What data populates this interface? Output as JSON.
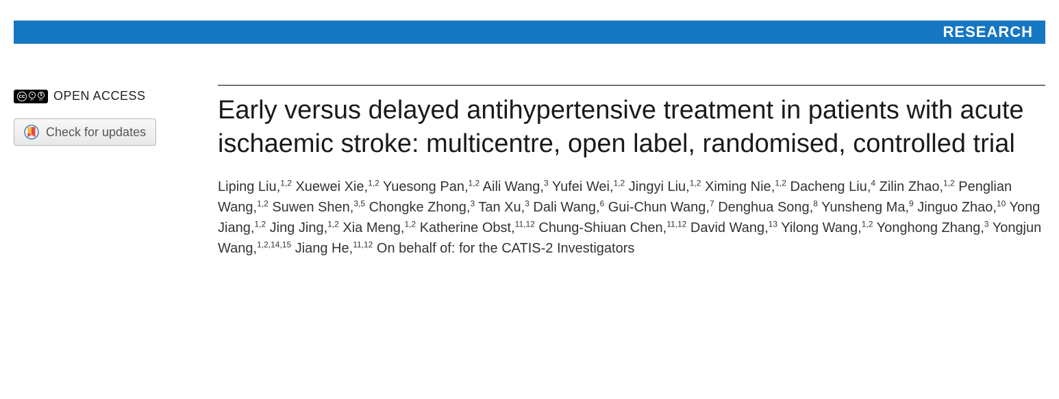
{
  "colors": {
    "header_bar": "#1576c2",
    "header_text": "#ffffff",
    "title_text": "#1a1a1a",
    "author_text": "#333333",
    "button_text": "#555555",
    "rule": "#000000",
    "background": "#ffffff"
  },
  "header": {
    "section_label": "RESEARCH"
  },
  "sidebar": {
    "open_access_label": "OPEN ACCESS",
    "cc_badge_alt": "CC BY-NC",
    "check_updates_label": "Check for updates"
  },
  "article": {
    "title": "Early versus delayed antihypertensive treatment in patients with acute ischaemic stroke: multicentre, open label, randomised, controlled trial",
    "authors": [
      {
        "name": "Liping Liu",
        "affil": "1,2"
      },
      {
        "name": "Xuewei Xie",
        "affil": "1,2"
      },
      {
        "name": "Yuesong Pan",
        "affil": "1,2"
      },
      {
        "name": "Aili Wang",
        "affil": "3"
      },
      {
        "name": "Yufei Wei",
        "affil": "1,2"
      },
      {
        "name": "Jingyi Liu",
        "affil": "1,2"
      },
      {
        "name": "Ximing Nie",
        "affil": "1,2"
      },
      {
        "name": "Dacheng Liu",
        "affil": "4"
      },
      {
        "name": "Zilin Zhao",
        "affil": "1,2"
      },
      {
        "name": "Penglian Wang",
        "affil": "1,2"
      },
      {
        "name": "Suwen Shen",
        "affil": "3,5"
      },
      {
        "name": "Chongke Zhong",
        "affil": "3"
      },
      {
        "name": "Tan Xu",
        "affil": "3"
      },
      {
        "name": "Dali Wang",
        "affil": "6"
      },
      {
        "name": "Gui-Chun Wang",
        "affil": "7"
      },
      {
        "name": "Denghua Song",
        "affil": "8"
      },
      {
        "name": "Yunsheng Ma",
        "affil": "9"
      },
      {
        "name": "Jinguo Zhao",
        "affil": "10"
      },
      {
        "name": "Yong Jiang",
        "affil": "1,2"
      },
      {
        "name": "Jing Jing",
        "affil": "1,2"
      },
      {
        "name": "Xia Meng",
        "affil": "1,2"
      },
      {
        "name": "Katherine Obst",
        "affil": "11,12"
      },
      {
        "name": "Chung-Shiuan Chen",
        "affil": "11,12"
      },
      {
        "name": "David Wang",
        "affil": "13"
      },
      {
        "name": "Yilong Wang",
        "affil": "1,2"
      },
      {
        "name": "Yonghong Zhang",
        "affil": "3"
      },
      {
        "name": "Yongjun Wang",
        "affil": "1,2,14,15"
      },
      {
        "name": "Jiang He",
        "affil": "11,12"
      }
    ],
    "group_author": "On behalf of: for the CATIS-2 Investigators"
  }
}
